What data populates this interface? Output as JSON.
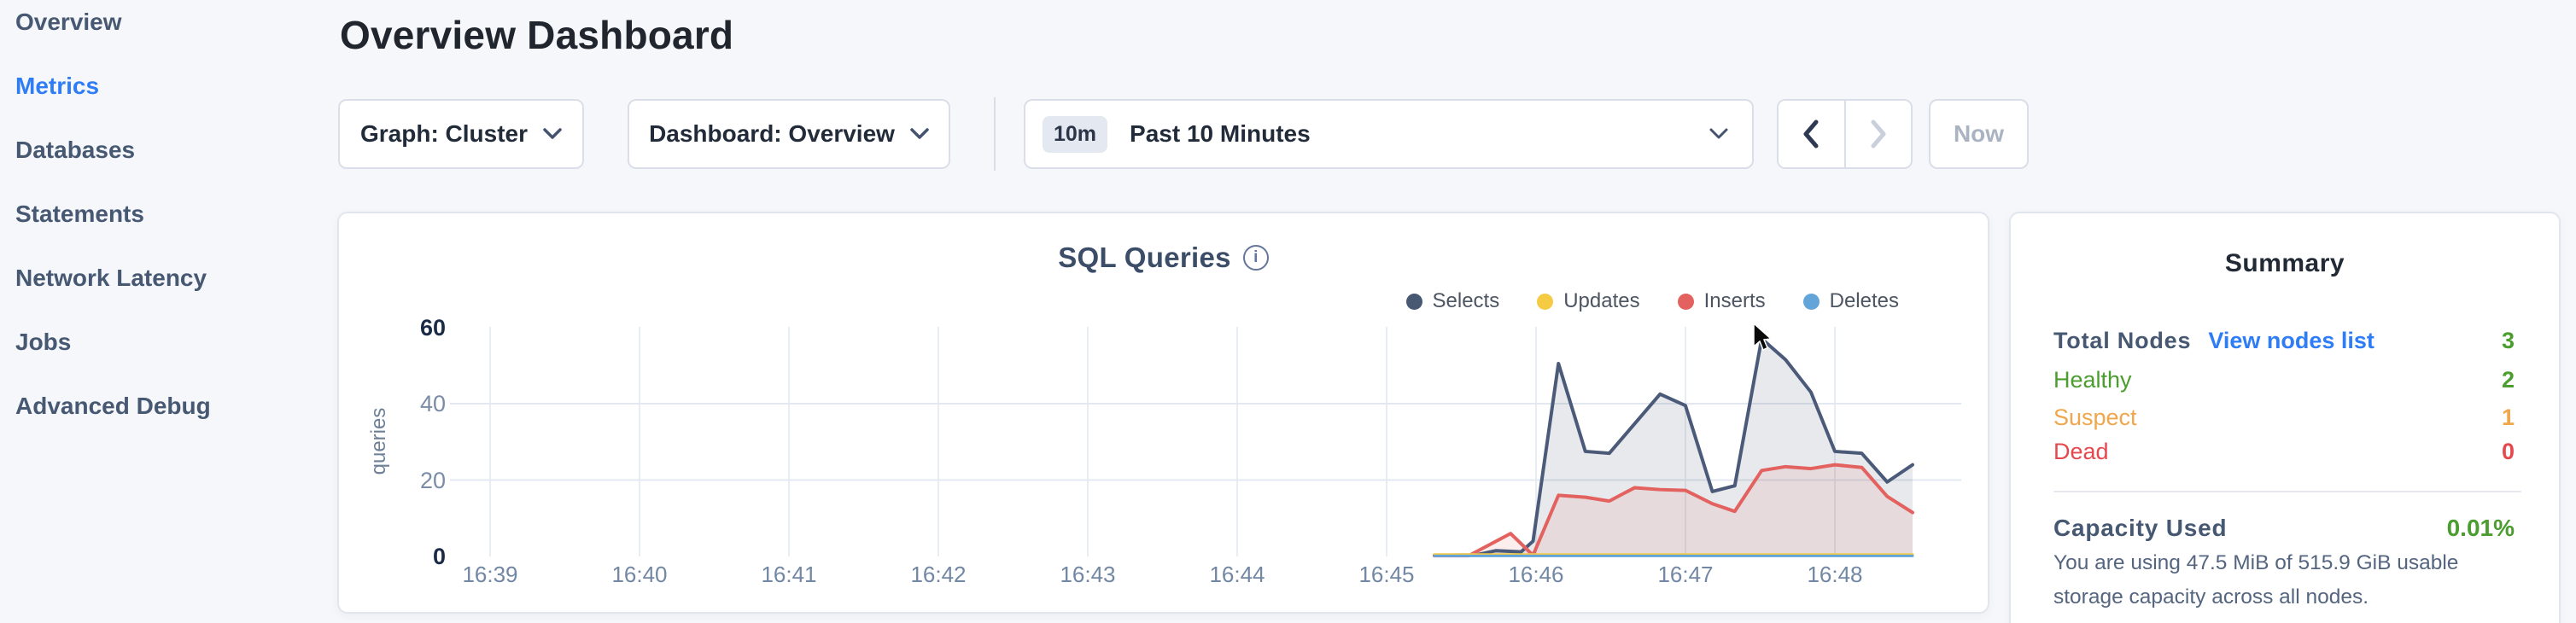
{
  "page": {
    "background": "#f5f7fa"
  },
  "colors": {
    "accent_blue": "#2f7df6",
    "healthy_green": "#4a9d2e",
    "suspect_orange": "#f0a64a",
    "dead_red": "#e5484d",
    "slate": "#475872"
  },
  "sidebar": {
    "items": [
      {
        "label": "Overview",
        "active": false
      },
      {
        "label": "Metrics",
        "active": true
      },
      {
        "label": "Databases",
        "active": false
      },
      {
        "label": "Statements",
        "active": false
      },
      {
        "label": "Network Latency",
        "active": false
      },
      {
        "label": "Jobs",
        "active": false
      },
      {
        "label": "Advanced Debug",
        "active": false
      }
    ]
  },
  "header": {
    "title": "Overview Dashboard"
  },
  "controls": {
    "graph_selector": {
      "label": "Graph: Cluster"
    },
    "dashboard_selector": {
      "label": "Dashboard: Overview"
    },
    "time_selector": {
      "badge": "10m",
      "label": "Past 10 Minutes"
    },
    "prev_button_icon": "chevron-left",
    "next_button_icon": "chevron-right",
    "now_button": {
      "label": "Now"
    }
  },
  "chart": {
    "title": "SQL Queries",
    "legend": [
      {
        "label": "Selects",
        "color": "#475872"
      },
      {
        "label": "Updates",
        "color": "#f5cb44"
      },
      {
        "label": "Inserts",
        "color": "#e3625f"
      },
      {
        "label": "Deletes",
        "color": "#64a5d9"
      }
    ]
  },
  "chart_data": {
    "type": "area",
    "title": "SQL Queries",
    "xlabel": "",
    "ylabel": "queries",
    "ylim": [
      0,
      60
    ],
    "y_ticks": [
      0,
      20,
      40,
      60
    ],
    "x_tick_labels": [
      "16:39",
      "16:40",
      "16:41",
      "16:42",
      "16:43",
      "16:44",
      "16:45",
      "16:46",
      "16:47",
      "16:48"
    ],
    "x_unit": "minutes offset from 16:39; data visible only from ~16:45.3 onward",
    "grid": true,
    "legend_position": "top-right",
    "series": [
      {
        "name": "Selects",
        "line_color": "#4a5a78",
        "fill": "rgba(71,88,110,0.13)",
        "points": [
          [
            6.32,
            0.3
          ],
          [
            6.6,
            0.4
          ],
          [
            6.73,
            1.5
          ],
          [
            6.9,
            1.2
          ],
          [
            6.98,
            4
          ],
          [
            7.15,
            50.5
          ],
          [
            7.33,
            27.5
          ],
          [
            7.49,
            27
          ],
          [
            7.83,
            42.5
          ],
          [
            8.0,
            39.5
          ],
          [
            8.18,
            17
          ],
          [
            8.33,
            18.5
          ],
          [
            8.51,
            57
          ],
          [
            8.67,
            51.5
          ],
          [
            8.84,
            43
          ],
          [
            9.0,
            27.5
          ],
          [
            9.18,
            27
          ],
          [
            9.35,
            19.5
          ],
          [
            9.52,
            24
          ]
        ]
      },
      {
        "name": "Updates",
        "line_color": "#f5cb44",
        "fill": "none",
        "points": [
          [
            6.32,
            0.5
          ],
          [
            9.52,
            0.5
          ]
        ]
      },
      {
        "name": "Inserts",
        "line_color": "#e3625f",
        "fill": "rgba(228,96,94,0.11)",
        "points": [
          [
            6.32,
            0.2
          ],
          [
            6.55,
            0.2
          ],
          [
            6.83,
            6
          ],
          [
            6.98,
            0.3
          ],
          [
            7.15,
            16
          ],
          [
            7.33,
            15.5
          ],
          [
            7.49,
            14.5
          ],
          [
            7.66,
            18
          ],
          [
            7.83,
            17.5
          ],
          [
            8.0,
            17.3
          ],
          [
            8.18,
            13.8
          ],
          [
            8.33,
            11.8
          ],
          [
            8.51,
            22.5
          ],
          [
            8.67,
            23.5
          ],
          [
            8.84,
            23
          ],
          [
            9.0,
            24
          ],
          [
            9.18,
            23.3
          ],
          [
            9.35,
            15.7
          ],
          [
            9.52,
            11.5
          ]
        ]
      },
      {
        "name": "Deletes",
        "line_color": "#64a5d9",
        "fill": "none",
        "points": [
          [
            6.32,
            0.15
          ],
          [
            9.52,
            0.15
          ]
        ]
      }
    ]
  },
  "summary": {
    "title": "Summary",
    "total_nodes": {
      "label": "Total Nodes",
      "link": "View nodes list",
      "value": "3"
    },
    "healthy": {
      "label": "Healthy",
      "value": "2"
    },
    "suspect": {
      "label": "Suspect",
      "value": "1"
    },
    "dead": {
      "label": "Dead",
      "value": "0"
    },
    "capacity": {
      "label": "Capacity Used",
      "value": "0.01%"
    },
    "capacity_description": "You are using 47.5 MiB of 515.9 GiB usable storage capacity across all nodes."
  }
}
